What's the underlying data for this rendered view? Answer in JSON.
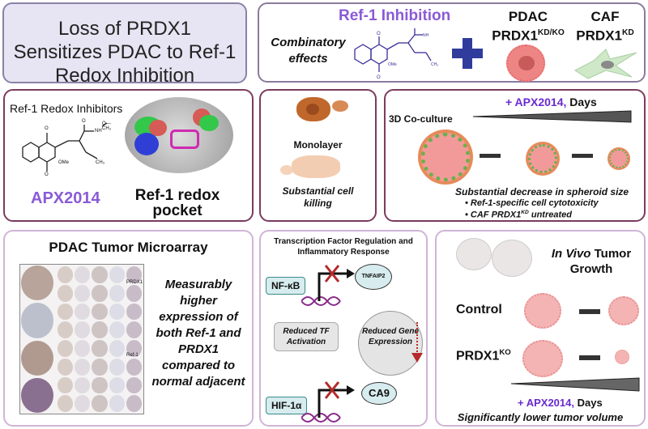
{
  "title": "Loss of PRDX1 Sensitizes PDAC to Ref-1 Redox Inhibition",
  "top_panel": {
    "heading": "Ref-1 Inhibition",
    "combo": "Combinatory effects",
    "pdac": "PDAC",
    "pdac_gene": "PRDX1",
    "pdac_sup": "KD/KO",
    "caf": "CAF",
    "caf_gene": "PRDX1",
    "caf_sup": "KD"
  },
  "inhibitor_panel": {
    "heading": "Ref-1 Redox Inhibitors",
    "drug": "APX2014",
    "pocket": "Ref-1 redox pocket",
    "atoms": {
      "o": "O",
      "nh": "NH",
      "och3": "O—CH₃",
      "ome": "OMe",
      "ch3": "CH₃"
    }
  },
  "monolayer_panel": {
    "label": "Monolayer",
    "result": "Substantial cell killing"
  },
  "coculture_panel": {
    "treatment": "+ APX2014,",
    "days": "Days",
    "label": "3D Co-culture",
    "result": "Substantial decrease in spheroid size",
    "bullets": [
      "Ref-1-specific cell cytotoxicity",
      "CAF PRDX1"
    ],
    "bullet2_sup": "KD",
    "bullet2_tail": " untreated"
  },
  "microarray_panel": {
    "heading": "PDAC Tumor Microarray",
    "stain_labels": [
      "PRDX1",
      "Ref-1"
    ],
    "result": "Measurably higher expression of both Ref-1 and PRDX1 compared to normal adjacent"
  },
  "tf_panel": {
    "heading": "Transcription Factor Regulation and Inflammatory Response",
    "tf1": "NF-κB",
    "gene1": "TNFAIP2",
    "reduced_tf": "Reduced TF Activation",
    "reduced_gene": "Reduced Gene Expression",
    "tf2": "HIF-1α",
    "gene2": "CA9"
  },
  "invivo_panel": {
    "heading_italic": "In Vivo",
    "heading_rest": " Tumor Growth",
    "control": "Control",
    "ko": "PRDX1",
    "ko_sup": "KO",
    "treatment": "+ APX2014,",
    "days": "Days",
    "result": "Significantly lower tumor volume"
  },
  "colors": {
    "accent": "#7a4cc4",
    "plus": "#2f3c9c",
    "title_bg": "#e7e4f3",
    "panel_border": "#7b3b5e",
    "tf_box": "#d7ecee",
    "inhibit_x": "#b52a2a"
  }
}
